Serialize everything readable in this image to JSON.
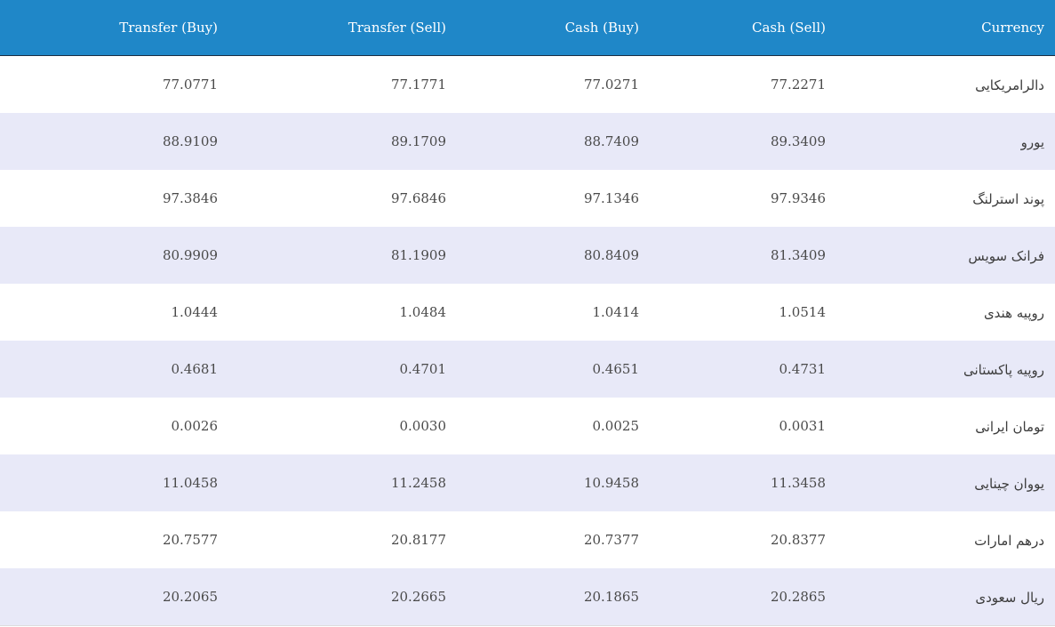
{
  "table": {
    "headers": {
      "transfer_buy": "Transfer (Buy)",
      "transfer_sell": "Transfer (Sell)",
      "cash_buy": "Cash (Buy)",
      "cash_sell": "Cash (Sell)",
      "currency": "Currency"
    },
    "rows": [
      {
        "transfer_buy": "77.0771",
        "transfer_sell": "77.1771",
        "cash_buy": "77.0271",
        "cash_sell": "77.2271",
        "currency": "دالرامریکایی"
      },
      {
        "transfer_buy": "88.9109",
        "transfer_sell": "89.1709",
        "cash_buy": "88.7409",
        "cash_sell": "89.3409",
        "currency": "یورو"
      },
      {
        "transfer_buy": "97.3846",
        "transfer_sell": "97.6846",
        "cash_buy": "97.1346",
        "cash_sell": "97.9346",
        "currency": "پوند استرلنگ"
      },
      {
        "transfer_buy": "80.9909",
        "transfer_sell": "81.1909",
        "cash_buy": "80.8409",
        "cash_sell": "81.3409",
        "currency": "فرانک سویس"
      },
      {
        "transfer_buy": "1.0444",
        "transfer_sell": "1.0484",
        "cash_buy": "1.0414",
        "cash_sell": "1.0514",
        "currency": "روپیه هندی"
      },
      {
        "transfer_buy": "0.4681",
        "transfer_sell": "0.4701",
        "cash_buy": "0.4651",
        "cash_sell": "0.4731",
        "currency": "روپیه پاکستانی"
      },
      {
        "transfer_buy": "0.0026",
        "transfer_sell": "0.0030",
        "cash_buy": "0.0025",
        "cash_sell": "0.0031",
        "currency": "تومان ایرانی"
      },
      {
        "transfer_buy": "11.0458",
        "transfer_sell": "11.2458",
        "cash_buy": "10.9458",
        "cash_sell": "11.3458",
        "currency": "یووان چینایی"
      },
      {
        "transfer_buy": "20.7577",
        "transfer_sell": "20.8177",
        "cash_buy": "20.7377",
        "cash_sell": "20.8377",
        "currency": "درهم امارات"
      },
      {
        "transfer_buy": "20.2065",
        "transfer_sell": "20.2665",
        "cash_buy": "20.1865",
        "cash_sell": "20.2865",
        "currency": "ریال سعودی"
      }
    ]
  },
  "colors": {
    "header_bg": "#1f87c8",
    "row_alt_bg": "#e8e9f8",
    "row_bg": "#ffffff"
  }
}
